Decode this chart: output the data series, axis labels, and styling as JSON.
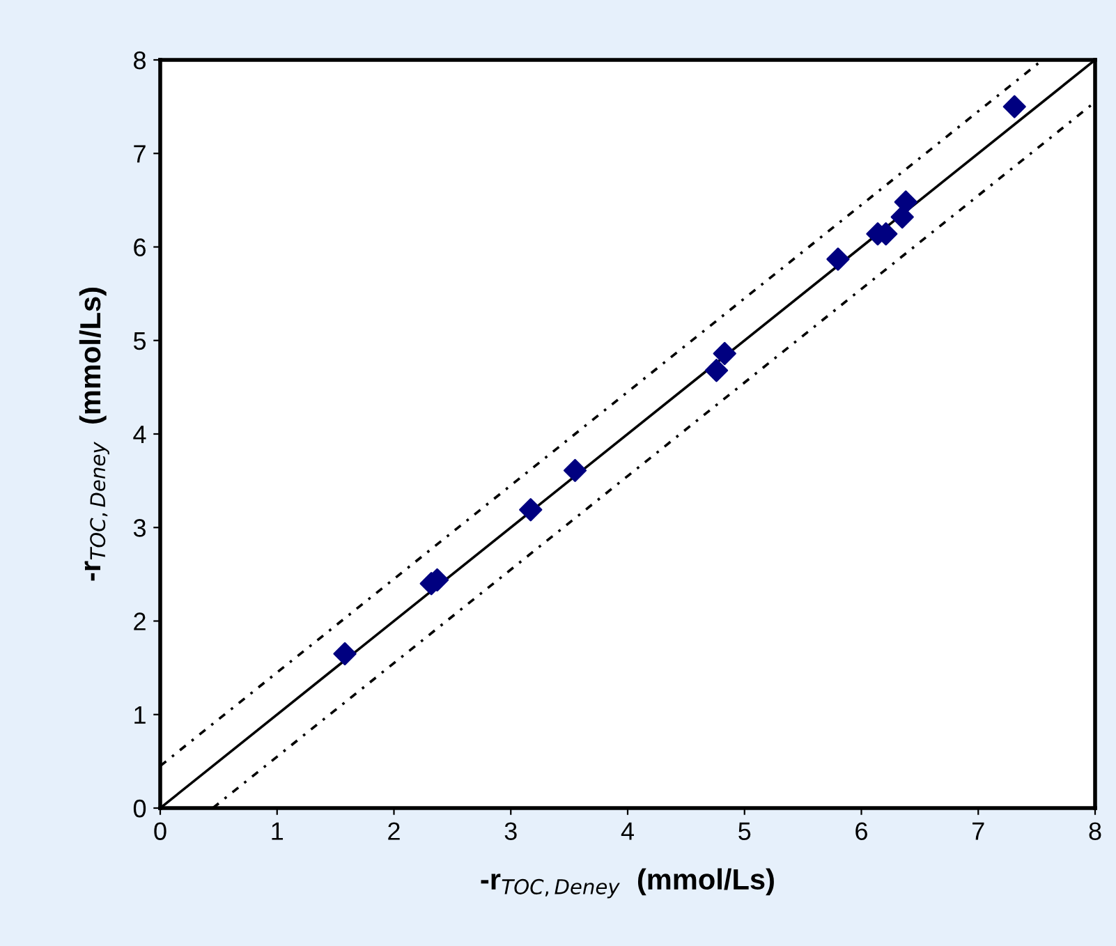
{
  "chart_data": {
    "type": "scatter",
    "xlabel": "-r$_{TOC,Deney}$  (mmol/Ls)",
    "ylabel": "-r$_{TOC,Deney}$  (mmol/Ls)",
    "xlim": [
      0,
      8
    ],
    "ylim": [
      0,
      8
    ],
    "xticks": [
      0,
      1,
      2,
      3,
      4,
      5,
      6,
      7,
      8
    ],
    "yticks": [
      0,
      1,
      2,
      3,
      4,
      5,
      6,
      7,
      8
    ],
    "grid": false,
    "legend": false,
    "series": [
      {
        "marker": "diamond",
        "color": "#000080",
        "x": [
          1.58,
          2.32,
          2.37,
          3.17,
          3.55,
          4.76,
          4.83,
          5.8,
          6.14,
          6.21,
          6.35,
          6.38,
          7.31
        ],
        "values": [
          1.65,
          2.4,
          2.44,
          3.19,
          3.61,
          4.68,
          4.86,
          5.87,
          6.14,
          6.14,
          6.32,
          6.48,
          7.5
        ]
      },
      {
        "type": "line",
        "line_style": "solid",
        "color": "#000000",
        "x": [
          0,
          8
        ],
        "values": [
          0,
          8
        ]
      },
      {
        "type": "line",
        "line_style": "dotted",
        "color": "#000000",
        "x": [
          0,
          7.55
        ],
        "values": [
          0.45,
          8
        ]
      },
      {
        "type": "line",
        "line_style": "dotted",
        "color": "#000000",
        "x": [
          0.45,
          8
        ],
        "values": [
          0,
          7.55
        ]
      }
    ]
  }
}
